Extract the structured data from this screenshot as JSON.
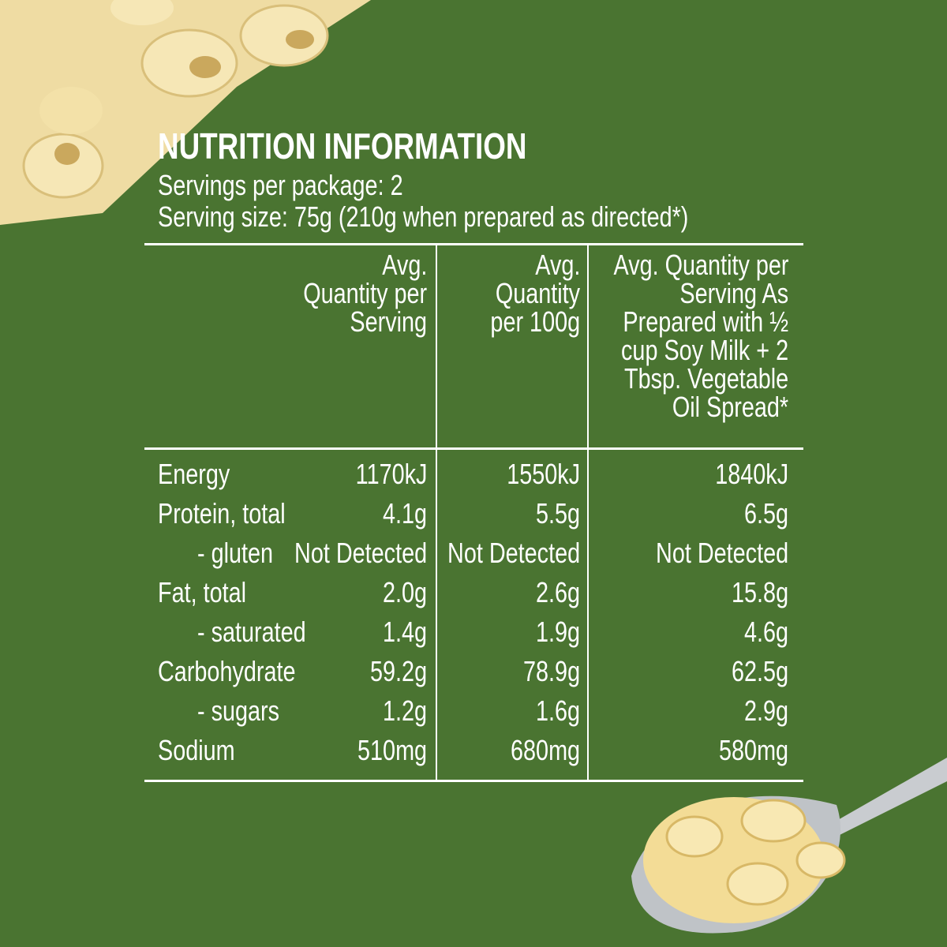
{
  "header": {
    "title": "NUTRITION INFORMATION",
    "lines": [
      "Servings per package: 2",
      "Serving size: 75g (210g when prepared as directed*)"
    ]
  },
  "table": {
    "headers": [
      [
        "Avg.",
        "Quantity per",
        "Serving"
      ],
      [
        "Avg.",
        "Quantity",
        "per 100g"
      ],
      [
        "Avg. Quantity per",
        "Serving As",
        "Prepared with ½",
        "cup Soy Milk + 2",
        "Tbsp. Vegetable",
        "Oil Spread*"
      ]
    ],
    "rows": [
      [
        "Energy",
        "1170kJ",
        "1550kJ",
        "1840kJ"
      ],
      [
        "Protein, total",
        "4.1g",
        "5.5g",
        "6.5g"
      ],
      [
        "- gluten",
        "Not Detected",
        "Not Detected",
        "Not Detected"
      ],
      [
        "Fat, total",
        "2.0g",
        "2.6g",
        "15.8g"
      ],
      [
        "- saturated",
        "1.4g",
        "1.9g",
        "4.6g"
      ],
      [
        "Carbohydrate",
        "59.2g",
        "78.9g",
        "62.5g"
      ],
      [
        "- sugars",
        "1.2g",
        "1.6g",
        "2.9g"
      ],
      [
        "Sodium",
        "510mg",
        "680mg",
        "580mg"
      ]
    ]
  }
}
